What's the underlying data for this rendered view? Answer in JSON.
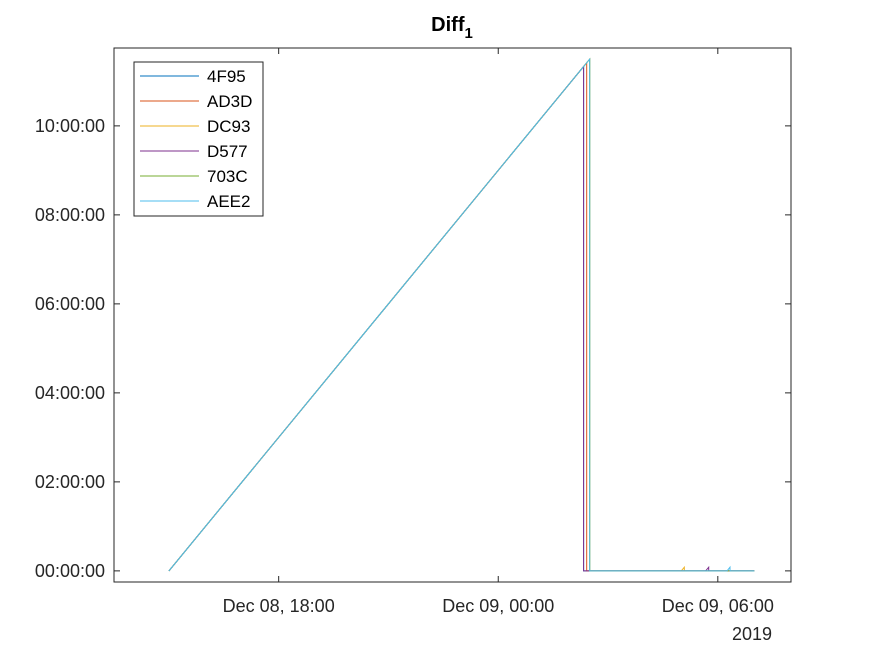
{
  "chart_data": {
    "type": "line",
    "title": "Diff",
    "title_subscript": "1",
    "xlabel": "",
    "ylabel": "",
    "x_axis_kind": "datetime",
    "xlim": [
      "2019-12-08 13:30",
      "2019-12-09 08:00"
    ],
    "x_ticks": [
      {
        "value": "2019-12-08 18:00",
        "label": "Dec 08, 18:00"
      },
      {
        "value": "2019-12-09 00:00",
        "label": "Dec 09, 00:00"
      },
      {
        "value": "2019-12-09 06:00",
        "label": "Dec 09, 06:00"
      }
    ],
    "x_secondary_label": "2019",
    "y_axis_kind": "duration",
    "ylim": [
      "-00:15:00",
      "11:45:00"
    ],
    "y_ticks": [
      {
        "value": "00:00:00",
        "label": "00:00:00"
      },
      {
        "value": "02:00:00",
        "label": "02:00:00"
      },
      {
        "value": "04:00:00",
        "label": "04:00:00"
      },
      {
        "value": "06:00:00",
        "label": "06:00:00"
      },
      {
        "value": "08:00:00",
        "label": "08:00:00"
      },
      {
        "value": "10:00:00",
        "label": "10:00:00"
      }
    ],
    "grid": false,
    "legend_position": "top-left",
    "series": [
      {
        "name": "4F95",
        "color": "#0072BD",
        "points": [
          {
            "x": "2019-12-08 15:00",
            "y": "00:00:00"
          },
          {
            "x": "2019-12-09 02:20",
            "y": "11:20:00"
          },
          {
            "x": "2019-12-09 02:20",
            "y": "00:00:00"
          },
          {
            "x": "2019-12-09 07:00",
            "y": "00:00:00"
          }
        ]
      },
      {
        "name": "AD3D",
        "color": "#D95319",
        "points": [
          {
            "x": "2019-12-08 15:00",
            "y": "00:00:00"
          },
          {
            "x": "2019-12-09 02:25",
            "y": "11:25:00"
          },
          {
            "x": "2019-12-09 02:25",
            "y": "00:00:00"
          },
          {
            "x": "2019-12-09 07:00",
            "y": "00:00:00"
          }
        ]
      },
      {
        "name": "DC93",
        "color": "#EDB120",
        "points": [
          {
            "x": "2019-12-08 15:00",
            "y": "00:00:00"
          },
          {
            "x": "2019-12-09 02:30",
            "y": "11:30:00"
          },
          {
            "x": "2019-12-09 02:30",
            "y": "00:00:00"
          },
          {
            "x": "2019-12-09 05:00",
            "y": "00:00:00"
          },
          {
            "x": "2019-12-09 05:05",
            "y": "00:05:00"
          },
          {
            "x": "2019-12-09 05:05",
            "y": "00:00:00"
          },
          {
            "x": "2019-12-09 07:00",
            "y": "00:00:00"
          }
        ]
      },
      {
        "name": "D577",
        "color": "#7E2F8E",
        "points": [
          {
            "x": "2019-12-08 15:00",
            "y": "00:00:00"
          },
          {
            "x": "2019-12-09 02:20",
            "y": "11:20:00"
          },
          {
            "x": "2019-12-09 02:20",
            "y": "00:00:00"
          },
          {
            "x": "2019-12-09 05:40",
            "y": "00:00:00"
          },
          {
            "x": "2019-12-09 05:45",
            "y": "00:05:00"
          },
          {
            "x": "2019-12-09 05:45",
            "y": "00:00:00"
          },
          {
            "x": "2019-12-09 07:00",
            "y": "00:00:00"
          }
        ]
      },
      {
        "name": "703C",
        "color": "#77AC30",
        "points": [
          {
            "x": "2019-12-08 15:00",
            "y": "00:00:00"
          },
          {
            "x": "2019-12-09 02:30",
            "y": "11:30:00"
          },
          {
            "x": "2019-12-09 02:30",
            "y": "00:00:00"
          },
          {
            "x": "2019-12-09 07:00",
            "y": "00:00:00"
          }
        ]
      },
      {
        "name": "AEE2",
        "color": "#4DBEEE",
        "points": [
          {
            "x": "2019-12-08 15:00",
            "y": "00:00:00"
          },
          {
            "x": "2019-12-09 02:30",
            "y": "11:30:00"
          },
          {
            "x": "2019-12-09 02:30",
            "y": "00:00:00"
          },
          {
            "x": "2019-12-09 06:15",
            "y": "00:00:00"
          },
          {
            "x": "2019-12-09 06:20",
            "y": "00:05:00"
          },
          {
            "x": "2019-12-09 06:20",
            "y": "00:00:00"
          },
          {
            "x": "2019-12-09 07:00",
            "y": "00:00:00"
          }
        ]
      }
    ]
  }
}
